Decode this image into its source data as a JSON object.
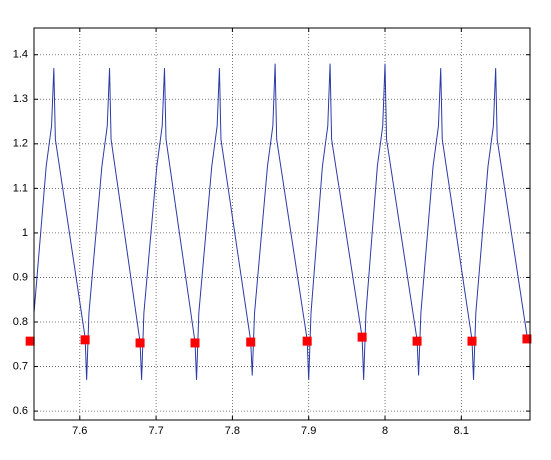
{
  "chart_data": {
    "type": "line",
    "xlim": [
      7.54,
      8.19
    ],
    "ylim": [
      0.58,
      1.46
    ],
    "xticks": [
      7.6,
      7.7,
      7.8,
      7.9,
      8,
      8.1
    ],
    "yticks": [
      0.6,
      0.7,
      0.8,
      0.9,
      1,
      1.1,
      1.2,
      1.3,
      1.4
    ],
    "grid": true,
    "series": [
      {
        "color": "#2b3aa8",
        "marker": "none",
        "x": [
          7.535,
          7.537,
          7.54,
          7.556,
          7.563,
          7.566,
          7.568,
          7.607,
          7.609,
          7.612,
          7.629,
          7.636,
          7.639,
          7.641,
          7.679,
          7.681,
          7.684,
          7.701,
          7.708,
          7.711,
          7.713,
          7.751,
          7.753,
          7.756,
          7.773,
          7.78,
          7.783,
          7.785,
          7.824,
          7.826,
          7.829,
          7.846,
          7.853,
          7.856,
          7.858,
          7.898,
          7.9,
          7.903,
          7.918,
          7.925,
          7.928,
          7.93,
          7.97,
          7.972,
          7.975,
          7.99,
          7.997,
          8.0,
          8.002,
          8.042,
          8.044,
          8.047,
          8.063,
          8.07,
          8.073,
          8.075,
          8.114,
          8.116,
          8.119,
          8.135,
          8.142,
          8.145,
          8.147,
          8.186
        ],
        "values": [
          0.765,
          0.67,
          0.82,
          1.15,
          1.24,
          1.37,
          1.21,
          0.765,
          0.67,
          0.82,
          1.15,
          1.24,
          1.37,
          1.21,
          0.755,
          0.67,
          0.82,
          1.15,
          1.24,
          1.37,
          1.21,
          0.755,
          0.67,
          0.82,
          1.15,
          1.24,
          1.37,
          1.21,
          0.757,
          0.68,
          0.82,
          1.15,
          1.24,
          1.38,
          1.21,
          0.76,
          0.67,
          0.82,
          1.15,
          1.24,
          1.38,
          1.21,
          0.766,
          0.67,
          0.82,
          1.15,
          1.24,
          1.38,
          1.21,
          0.76,
          0.68,
          0.82,
          1.15,
          1.24,
          1.37,
          1.21,
          0.76,
          0.67,
          0.82,
          1.15,
          1.24,
          1.37,
          1.21,
          0.77
        ]
      },
      {
        "color": "#ff0000",
        "marker": "square",
        "x": [
          7.535,
          7.607,
          7.679,
          7.751,
          7.824,
          7.898,
          7.97,
          8.042,
          8.114,
          8.186
        ],
        "values": [
          0.757,
          0.76,
          0.753,
          0.753,
          0.755,
          0.757,
          0.766,
          0.757,
          0.757,
          0.762
        ]
      }
    ]
  }
}
